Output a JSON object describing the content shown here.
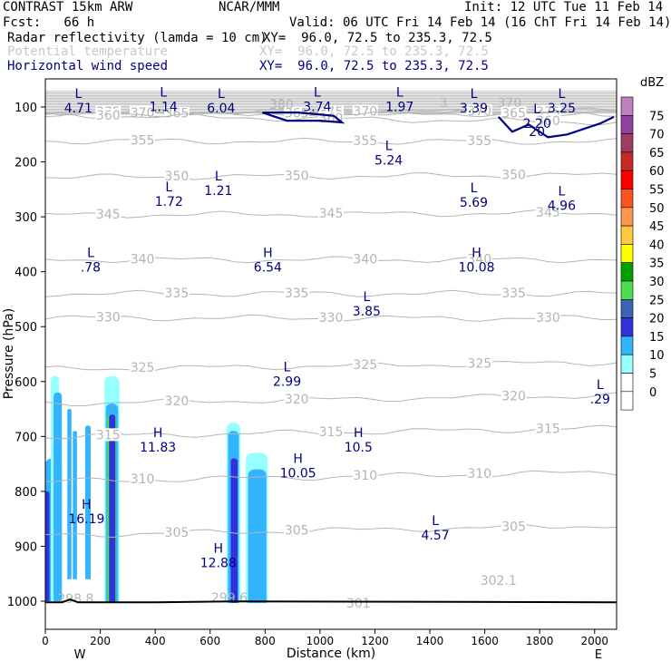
{
  "header": {
    "model": "CONTRAST 15km ARW",
    "org": "NCAR/MMM",
    "init": "Init: 12 UTC Tue 11 Feb 14",
    "fcst": "Fcst:   66 h",
    "valid": "Valid: 06 UTC Fri 14 Feb 14 (16 ChT Fri 14 Feb 14)",
    "field1_name": "Radar reflectivity (lamda = 10 cm)",
    "field1_xy": "XY=  96.0, 72.5 to 235.3, 72.5",
    "field2_name": "Potential temperature",
    "field2_xy": "XY=  96.0, 72.5 to 235.3, 72.5",
    "field3_name": "Horizontal wind speed",
    "field3_xy": "XY=  96.0, 72.5 to 235.3, 72.5"
  },
  "colors": {
    "theta_contour": "#b4b4b4",
    "wind_contour": "#000080",
    "hl_label": "#000080",
    "terrain": "#000000"
  },
  "chart_data": {
    "type": "heatmap",
    "title": "",
    "xlabel": "Distance (km)",
    "ylabel": "Pressure (hPa)",
    "xlim": [
      0,
      2080
    ],
    "ylim_hpa": [
      1050,
      70
    ],
    "x_ticks": [
      0,
      200,
      400,
      600,
      800,
      1000,
      1200,
      1400,
      1600,
      1800,
      2000
    ],
    "x_tick_labels": [
      "0",
      "200",
      "400",
      "600",
      "800",
      "1000",
      "1200",
      "1400",
      "1600",
      "1800",
      "2000"
    ],
    "y_ticks": [
      100,
      200,
      300,
      400,
      500,
      600,
      700,
      800,
      900,
      1000
    ],
    "y_tick_labels": [
      "100",
      "200",
      "300",
      "400",
      "500",
      "600",
      "700",
      "800",
      "900",
      "1000"
    ],
    "direction_left": "W",
    "direction_right": "E",
    "colorbar": {
      "unit": "dBZ",
      "levels": [
        "75",
        "70",
        "65",
        "60",
        "55",
        "50",
        "45",
        "40",
        "35",
        "30",
        "25",
        "20",
        "15",
        "10",
        "5",
        "0"
      ],
      "colors": [
        "#c080c0",
        "#9040a0",
        "#a03c64",
        "#c82828",
        "#ff0000",
        "#ff5020",
        "#ff9650",
        "#ffc840",
        "#ffff00",
        "#00a000",
        "#50dc50",
        "#3c64b4",
        "#3232dc",
        "#32b4ff",
        "#96ffff",
        "#ffffff"
      ]
    },
    "theta_contours": [
      {
        "level": 375,
        "label": "375",
        "p_left": 110,
        "p_right": 110
      },
      {
        "level": 370,
        "label": "370",
        "p_left": 112,
        "p_right": 107
      },
      {
        "level": 365,
        "label": "365",
        "p_left": 113,
        "p_right": 112
      },
      {
        "level": 360,
        "label": "360",
        "p_left": 115,
        "p_right": 128
      },
      {
        "level": 355,
        "label": "355",
        "p_left": 162,
        "p_right": 163
      },
      {
        "level": 350,
        "label": "350",
        "p_left": 228,
        "p_right": 224
      },
      {
        "level": 345,
        "label": "345",
        "p_left": 297,
        "p_right": 293
      },
      {
        "level": 340,
        "label": "340",
        "p_left": 378,
        "p_right": 378
      },
      {
        "level": 335,
        "label": "335",
        "p_left": 440,
        "p_right": 440
      },
      {
        "level": 330,
        "label": "330",
        "p_left": 484,
        "p_right": 485
      },
      {
        "level": 325,
        "label": "325",
        "p_left": 578,
        "p_right": 565
      },
      {
        "level": 320,
        "label": "320",
        "p_left": 640,
        "p_right": 625
      },
      {
        "level": 315,
        "label": "315",
        "p_left": 700,
        "p_right": 685
      },
      {
        "level": 310,
        "label": "310",
        "p_left": 782,
        "p_right": 765
      },
      {
        "level": 305,
        "label": "305",
        "p_left": 880,
        "p_right": 862
      }
    ],
    "theta_extra_labels": [
      {
        "text": "380",
        "x": 860,
        "p": 95
      },
      {
        "text": "3",
        "x": 1450,
        "p": 92
      },
      {
        "text": "370",
        "x": 1690,
        "p": 92
      },
      {
        "text": "302.1",
        "x": 1650,
        "p": 962
      },
      {
        "text": "301",
        "x": 1140,
        "p": 1003
      },
      {
        "text": "298.8",
        "x": 110,
        "p": 995
      },
      {
        "text": "299.6",
        "x": 670,
        "p": 993
      }
    ],
    "hl_labels": [
      {
        "kind": "L",
        "value": "4.71",
        "x": 120,
        "p": 90
      },
      {
        "kind": "L",
        "value": "1.14",
        "x": 430,
        "p": 88
      },
      {
        "kind": "L",
        "value": "6.04",
        "x": 640,
        "p": 90
      },
      {
        "kind": "L",
        "value": "3.74",
        "x": 990,
        "p": 88
      },
      {
        "kind": "L",
        "value": "1.97",
        "x": 1290,
        "p": 88
      },
      {
        "kind": "L",
        "value": "3.39",
        "x": 1560,
        "p": 90
      },
      {
        "kind": "L",
        "value": "3.25",
        "x": 1880,
        "p": 90
      },
      {
        "kind": "L",
        "value": "5.24",
        "x": 1250,
        "p": 185
      },
      {
        "kind": "L",
        "value": "1.72",
        "x": 450,
        "p": 260
      },
      {
        "kind": "L",
        "value": "1.21",
        "x": 630,
        "p": 240
      },
      {
        "kind": "L",
        "value": "5.69",
        "x": 1560,
        "p": 262
      },
      {
        "kind": "L",
        "value": "4.96",
        "x": 1880,
        "p": 268
      },
      {
        "kind": "L",
        "value": ".78",
        "x": 165,
        "p": 380
      },
      {
        "kind": "H",
        "value": "6.54",
        "x": 810,
        "p": 380
      },
      {
        "kind": "H",
        "value": "10.08",
        "x": 1570,
        "p": 380
      },
      {
        "kind": "L",
        "value": "3.85",
        "x": 1170,
        "p": 460
      },
      {
        "kind": "L",
        "value": "2.99",
        "x": 880,
        "p": 588
      },
      {
        "kind": "L",
        "value": ".29",
        "x": 2020,
        "p": 620
      },
      {
        "kind": "H",
        "value": "11.83",
        "x": 410,
        "p": 708
      },
      {
        "kind": "H",
        "value": "10.5",
        "x": 1140,
        "p": 708
      },
      {
        "kind": "H",
        "value": "10.05",
        "x": 920,
        "p": 755
      },
      {
        "kind": "H",
        "value": "16.19",
        "x": 150,
        "p": 838
      },
      {
        "kind": "H",
        "value": "12.88",
        "x": 630,
        "p": 918
      },
      {
        "kind": "L",
        "value": "4.57",
        "x": 1420,
        "p": 868
      },
      {
        "kind": "L",
        "value": "2.20",
        "x": 1790,
        "p": 118
      },
      {
        "kind": "",
        "value": "20",
        "x": 1790,
        "p": 133
      }
    ],
    "wind_contours": [
      {
        "name": "jet-core-left",
        "points": [
          [
            790,
            110
          ],
          [
            880,
            125
          ],
          [
            1000,
            125
          ],
          [
            1080,
            128
          ],
          [
            1050,
            116
          ],
          [
            920,
            110
          ],
          [
            790,
            110
          ]
        ]
      },
      {
        "name": "jet-right-edge",
        "points": [
          [
            1650,
            118
          ],
          [
            1700,
            145
          ],
          [
            1760,
            132
          ],
          [
            1830,
            155
          ],
          [
            1900,
            150
          ],
          [
            1960,
            140
          ],
          [
            2020,
            130
          ],
          [
            2070,
            118
          ]
        ]
      }
    ],
    "reflectivity_cells": [
      {
        "x0": 0,
        "x1": 60,
        "p_top": 740,
        "p_bot": 1000,
        "dbz": 10
      },
      {
        "x0": 20,
        "x1": 50,
        "p_top": 590,
        "p_bot": 1000,
        "dbz": 5
      },
      {
        "x0": 30,
        "x1": 60,
        "p_top": 620,
        "p_bot": 1000,
        "dbz": 10
      },
      {
        "x0": 80,
        "x1": 95,
        "p_top": 650,
        "p_bot": 960,
        "dbz": 10
      },
      {
        "x0": 100,
        "x1": 115,
        "p_top": 690,
        "p_bot": 960,
        "dbz": 10
      },
      {
        "x0": 145,
        "x1": 165,
        "p_top": 680,
        "p_bot": 960,
        "dbz": 10
      },
      {
        "x0": 215,
        "x1": 270,
        "p_top": 590,
        "p_bot": 1003,
        "dbz": 5
      },
      {
        "x0": 220,
        "x1": 265,
        "p_top": 640,
        "p_bot": 1003,
        "dbz": 10
      },
      {
        "x0": 225,
        "x1": 258,
        "p_top": 660,
        "p_bot": 1003,
        "dbz": 25
      },
      {
        "x0": 232,
        "x1": 255,
        "p_top": 660,
        "p_bot": 1003,
        "dbz": 15
      },
      {
        "x0": 660,
        "x1": 710,
        "p_top": 675,
        "p_bot": 1003,
        "dbz": 5
      },
      {
        "x0": 665,
        "x1": 705,
        "p_top": 690,
        "p_bot": 1003,
        "dbz": 10
      },
      {
        "x0": 675,
        "x1": 700,
        "p_top": 740,
        "p_bot": 1003,
        "dbz": 15
      },
      {
        "x0": 730,
        "x1": 810,
        "p_top": 730,
        "p_bot": 1003,
        "dbz": 5
      },
      {
        "x0": 738,
        "x1": 805,
        "p_top": 760,
        "p_bot": 1003,
        "dbz": 10
      },
      {
        "x0": 0,
        "x1": 15,
        "p_top": 800,
        "p_bot": 1000,
        "dbz": 15
      }
    ],
    "terrain_p": 1002
  }
}
